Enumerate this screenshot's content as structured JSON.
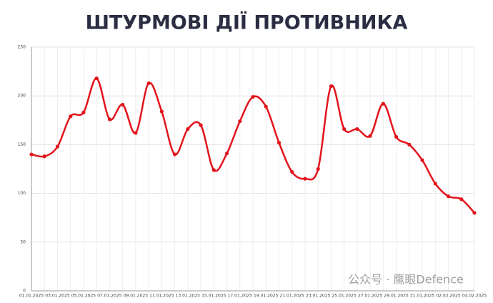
{
  "chart_data": {
    "type": "line",
    "title": "ШТУРМОВІ ДІЇ ПРОТИВНИКА",
    "categories": [
      "01.01.2025",
      null,
      "03.01.2025",
      null,
      "05.01.2025",
      null,
      "07.01.2025",
      null,
      "09.01.2025",
      null,
      "11.01.2025",
      null,
      "13.01.2025",
      null,
      "15.01.2025",
      null,
      "17.01.2025",
      null,
      "19.01.2025",
      null,
      "21.01.2025",
      null,
      "23.01.2025",
      null,
      "25.01.2025",
      null,
      "27.01.2025",
      null,
      "29.01.2025",
      null,
      "31.01.2025",
      null,
      "02.02.2025",
      null,
      "04.02.2025"
    ],
    "series": [
      {
        "color": "#e3141b",
        "values": [
          140,
          138,
          148,
          179,
          183,
          218,
          176,
          191,
          162,
          213,
          184,
          140,
          166,
          170,
          124,
          141,
          174,
          199,
          189,
          152,
          122,
          115,
          125,
          210,
          166,
          166,
          159,
          192,
          158,
          150,
          134,
          110,
          97,
          94,
          80
        ]
      }
    ],
    "ylim": [
      0,
      250
    ],
    "yticks": [
      0,
      50,
      100,
      150,
      200,
      250
    ],
    "grid": true,
    "watermark": "公众号 · 鹰眼Defence"
  }
}
